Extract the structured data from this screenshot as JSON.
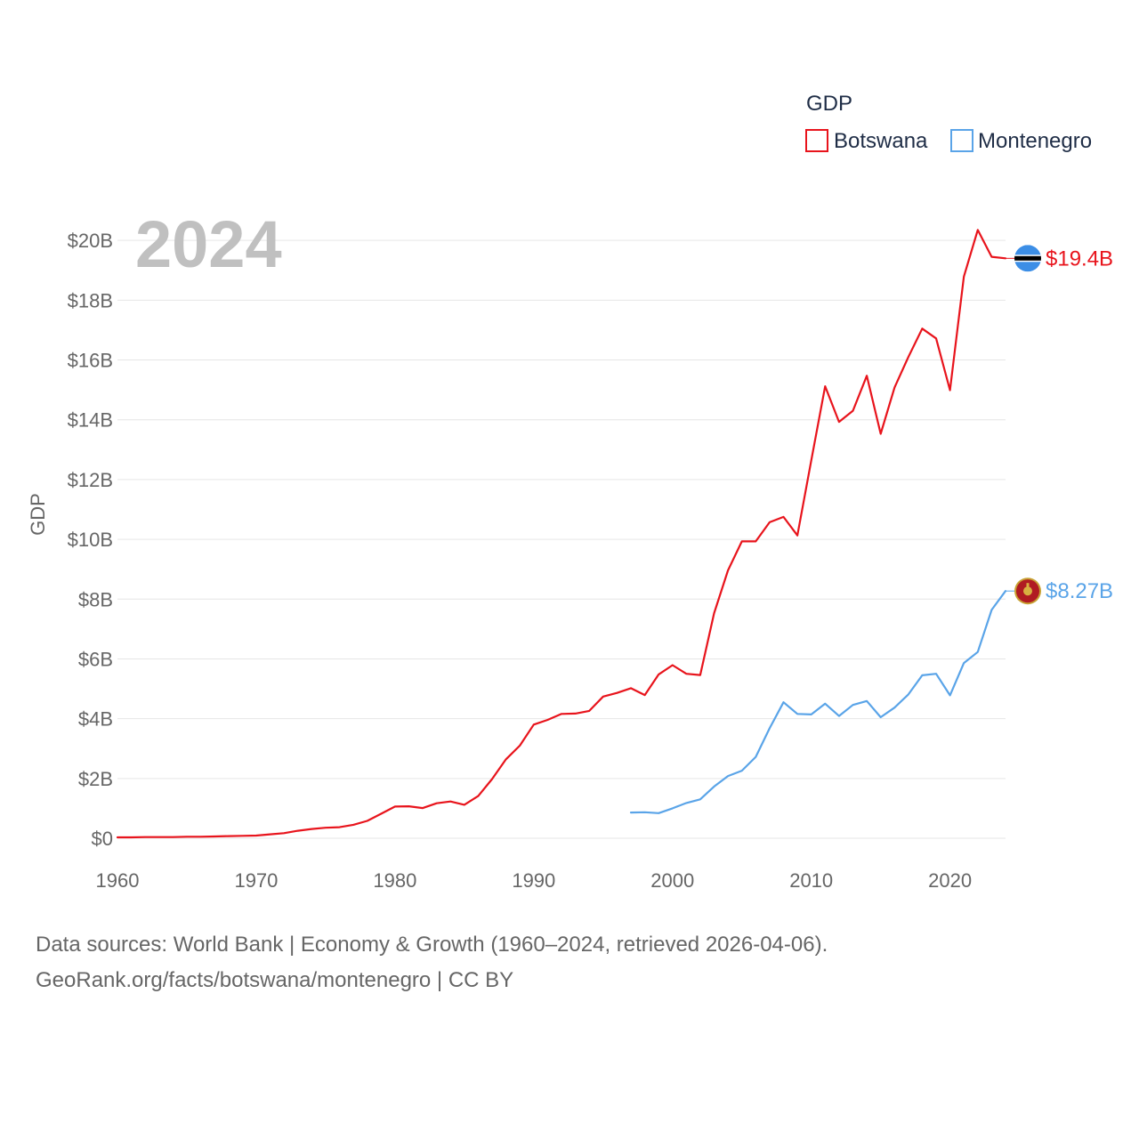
{
  "chart_data": {
    "type": "line",
    "year_overlay": "2024",
    "ylabel": "GDP",
    "xlim": [
      1960,
      2024
    ],
    "ylim": [
      0,
      20.6
    ],
    "yticks": [
      {
        "value": 0,
        "label": "$0"
      },
      {
        "value": 2,
        "label": "$2B"
      },
      {
        "value": 4,
        "label": "$4B"
      },
      {
        "value": 6,
        "label": "$6B"
      },
      {
        "value": 8,
        "label": "$8B"
      },
      {
        "value": 10,
        "label": "$10B"
      },
      {
        "value": 12,
        "label": "$12B"
      },
      {
        "value": 14,
        "label": "$14B"
      },
      {
        "value": 16,
        "label": "$16B"
      },
      {
        "value": 18,
        "label": "$18B"
      },
      {
        "value": 20,
        "label": "$20B"
      }
    ],
    "xticks": [
      {
        "value": 1960,
        "label": "1960"
      },
      {
        "value": 1970,
        "label": "1970"
      },
      {
        "value": 1980,
        "label": "1980"
      },
      {
        "value": 1990,
        "label": "1990"
      },
      {
        "value": 2000,
        "label": "2000"
      },
      {
        "value": 2010,
        "label": "2010"
      },
      {
        "value": 2020,
        "label": "2020"
      }
    ],
    "legend": {
      "title": "GDP",
      "position": "top-right"
    },
    "series": [
      {
        "name": "Botswana",
        "color": "#e8141c",
        "end_label": "$19.4B",
        "flag": "botswana-flag-icon",
        "x": [
          1960,
          1961,
          1962,
          1963,
          1964,
          1965,
          1966,
          1967,
          1968,
          1969,
          1970,
          1971,
          1972,
          1973,
          1974,
          1975,
          1976,
          1977,
          1978,
          1979,
          1980,
          1981,
          1982,
          1983,
          1984,
          1985,
          1986,
          1987,
          1988,
          1989,
          1990,
          1991,
          1992,
          1993,
          1994,
          1995,
          1996,
          1997,
          1998,
          1999,
          2000,
          2001,
          2002,
          2003,
          2004,
          2005,
          2006,
          2007,
          2008,
          2009,
          2010,
          2011,
          2012,
          2013,
          2014,
          2015,
          2016,
          2017,
          2018,
          2019,
          2020,
          2021,
          2022,
          2023,
          2024
        ],
        "values": [
          0.03,
          0.03,
          0.04,
          0.04,
          0.04,
          0.05,
          0.05,
          0.06,
          0.07,
          0.08,
          0.09,
          0.13,
          0.17,
          0.25,
          0.31,
          0.35,
          0.37,
          0.45,
          0.58,
          0.82,
          1.06,
          1.07,
          1.01,
          1.17,
          1.23,
          1.12,
          1.41,
          1.98,
          2.64,
          3.1,
          3.8,
          3.96,
          4.16,
          4.17,
          4.26,
          4.74,
          4.86,
          5.02,
          4.79,
          5.48,
          5.79,
          5.5,
          5.46,
          7.53,
          8.96,
          9.93,
          9.93,
          10.57,
          10.75,
          10.13,
          12.64,
          15.12,
          13.93,
          14.3,
          15.47,
          13.53,
          15.08,
          16.1,
          17.05,
          16.72,
          14.99,
          18.79,
          20.35,
          19.45,
          19.4
        ]
      },
      {
        "name": "Montenegro",
        "color": "#5aa4e8",
        "end_label": "$8.27B",
        "flag": "montenegro-flag-icon",
        "x": [
          1997,
          1998,
          1999,
          2000,
          2001,
          2002,
          2003,
          2004,
          2005,
          2006,
          2007,
          2008,
          2009,
          2010,
          2011,
          2012,
          2013,
          2014,
          2015,
          2016,
          2017,
          2018,
          2019,
          2020,
          2021,
          2022,
          2023,
          2024
        ],
        "values": [
          0.86,
          0.87,
          0.84,
          1.0,
          1.18,
          1.3,
          1.73,
          2.08,
          2.26,
          2.72,
          3.68,
          4.55,
          4.16,
          4.14,
          4.5,
          4.09,
          4.46,
          4.59,
          4.05,
          4.37,
          4.81,
          5.45,
          5.5,
          4.78,
          5.86,
          6.23,
          7.64,
          8.27
        ]
      }
    ]
  },
  "footer": {
    "line1": "Data sources: World Bank | Economy & Growth (1960–2024, retrieved 2026-04-06).",
    "line2": "GeoRank.org/facts/botswana/montenegro | CC BY"
  }
}
